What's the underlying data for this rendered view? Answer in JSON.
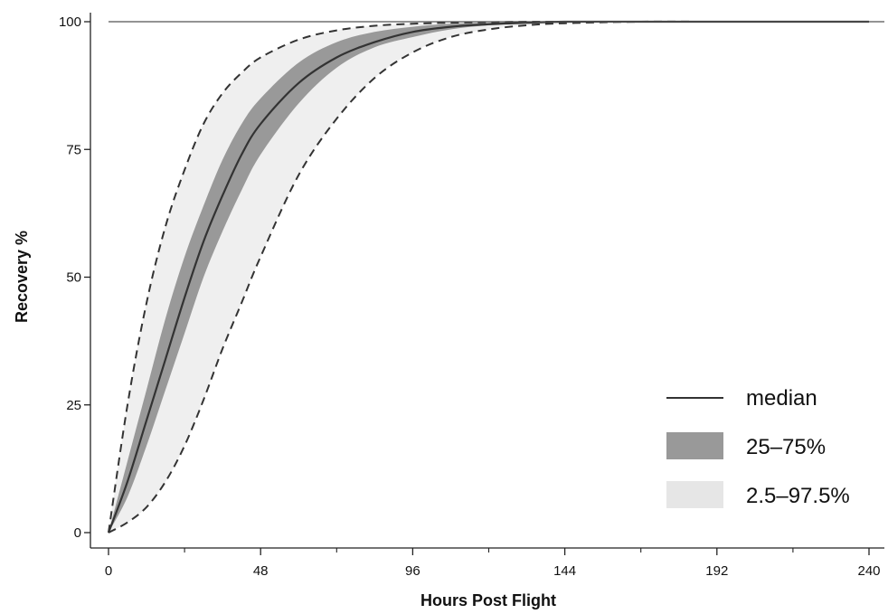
{
  "chart_data": {
    "type": "line",
    "xlabel": "Hours Post Flight",
    "ylabel": "Recovery %",
    "xlim": [
      0,
      240
    ],
    "ylim": [
      0,
      100
    ],
    "x_ticks": [
      0,
      48,
      96,
      144,
      192,
      240
    ],
    "x_tick_labels": [
      "0",
      "48",
      "96",
      "144",
      "192",
      "240"
    ],
    "y_ticks": [
      0,
      25,
      50,
      75,
      100
    ],
    "y_tick_labels": [
      "0",
      "25",
      "50",
      "75",
      "100"
    ],
    "grid": false,
    "reference_line": 100,
    "legend_position": "bottom-right",
    "legend": [
      "median",
      "25–75%",
      "2.5–97.5%"
    ],
    "x": [
      0,
      6,
      12,
      18,
      24,
      30,
      36,
      42,
      48,
      60,
      72,
      84,
      96,
      108,
      120,
      132,
      144,
      168,
      192,
      216,
      240
    ],
    "series": [
      {
        "name": "median",
        "style": "solid",
        "color": "#333333",
        "values": [
          0,
          10,
          22,
          34,
          46,
          57,
          66,
          74,
          80,
          88,
          93,
          96,
          98,
          99,
          99.5,
          99.8,
          100,
          100,
          100,
          100,
          100
        ]
      },
      {
        "name": "25–75%",
        "style": "band",
        "color": "#999999",
        "lower": [
          0,
          7,
          17,
          28,
          39,
          50,
          59,
          67,
          74,
          84,
          91,
          95,
          97,
          98.5,
          99.3,
          99.7,
          99.9,
          100,
          100,
          100,
          100
        ],
        "upper": [
          0,
          14,
          28,
          42,
          54,
          64,
          73,
          80,
          85,
          92,
          96,
          98,
          99,
          99.6,
          99.8,
          99.9,
          100,
          100,
          100,
          100,
          100
        ]
      },
      {
        "name": "2.5–97.5%",
        "style": "dashed-band",
        "color": "#333333",
        "lower": [
          0,
          2,
          5,
          10,
          17,
          26,
          36,
          45,
          54,
          70,
          81,
          89,
          94,
          97,
          98.5,
          99.3,
          99.7,
          100,
          100,
          100,
          100
        ],
        "upper": [
          0,
          25,
          45,
          60,
          71,
          80,
          86,
          90,
          93,
          96.5,
          98.3,
          99.2,
          99.6,
          99.8,
          99.9,
          100,
          100,
          100,
          100,
          100,
          100
        ]
      }
    ]
  }
}
